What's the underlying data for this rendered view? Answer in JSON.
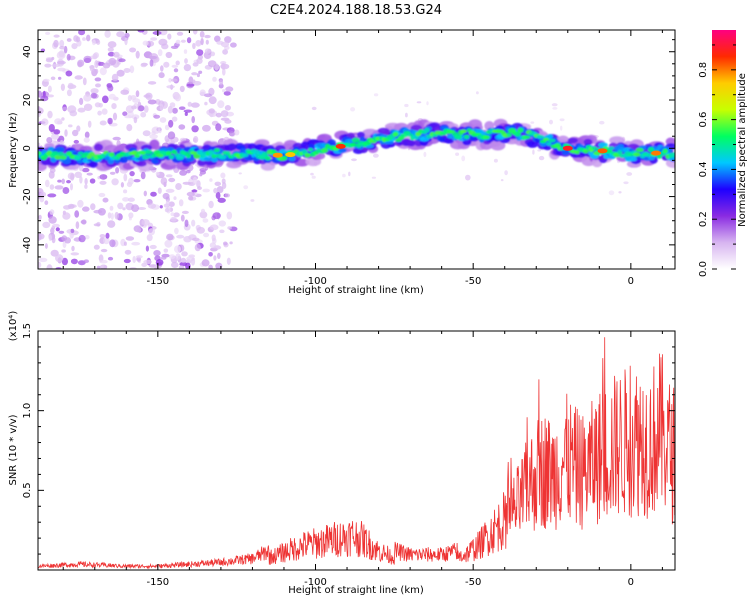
{
  "title": "C2E4.2024.188.18.53.G24",
  "chart_data": [
    {
      "type": "heatmap",
      "xlabel": "Height of straight line (km)",
      "ylabel": "Frequency (Hz)",
      "xlim": [
        -188,
        14
      ],
      "ylim": [
        -50,
        49
      ],
      "xticks": [
        -150,
        -100,
        -50,
        0
      ],
      "yticks": [
        -40,
        -20,
        0,
        20,
        40
      ],
      "ridge_center": [
        {
          "x": -188,
          "y": -3
        },
        {
          "x": -150,
          "y": -3
        },
        {
          "x": -125,
          "y": -2
        },
        {
          "x": -110,
          "y": -3
        },
        {
          "x": -95,
          "y": 0
        },
        {
          "x": -80,
          "y": 4
        },
        {
          "x": -65,
          "y": 6
        },
        {
          "x": -50,
          "y": 6
        },
        {
          "x": -35,
          "y": 6
        },
        {
          "x": -28,
          "y": 4
        },
        {
          "x": -20,
          "y": 0
        },
        {
          "x": 0,
          "y": -2
        },
        {
          "x": 14,
          "y": -2
        }
      ],
      "noise_region": [
        -188,
        -126
      ],
      "colorbar": {
        "label": "Normalized spectral amplitude",
        "ticks": [
          "0.0",
          "0.2",
          "0.4",
          "0.6",
          "0.8"
        ],
        "range": [
          0,
          0.96
        ],
        "colormap": [
          "#ffffff",
          "#d7b4f0",
          "#8a2be2",
          "#1e00ff",
          "#00c8ff",
          "#00ff60",
          "#c8ff00",
          "#ffcc00",
          "#ff2a00",
          "#ff0080"
        ]
      },
      "ridge_peaks": [
        {
          "x": -92,
          "amp": 0.85
        },
        {
          "x": -20,
          "amp": 0.88
        },
        {
          "x": -9,
          "amp": 0.82
        },
        {
          "x": 8,
          "amp": 0.8
        },
        {
          "x": -112,
          "amp": 0.78
        },
        {
          "x": -108,
          "amp": 0.75
        }
      ]
    },
    {
      "type": "line",
      "xlabel": "Height of straight line (km)",
      "ylabel": "SNR (10 * v/v)",
      "multiplier": "(x10⁴)",
      "xlim": [
        -188,
        14
      ],
      "ylim": [
        0,
        1.5
      ],
      "xticks": [
        -150,
        -100,
        -50,
        0
      ],
      "yticks": [
        "0.5",
        "1.0",
        "1.5"
      ],
      "series": [
        {
          "color": "#ee3333",
          "x": [
            -188,
            -175,
            -160,
            -150,
            -140,
            -130,
            -120,
            -112,
            -108,
            -103,
            -98,
            -93,
            -88,
            -85,
            -80,
            -75,
            -70,
            -65,
            -60,
            -55,
            -52,
            -48,
            -45,
            -42,
            -38,
            -35,
            -33,
            -31,
            -29,
            -27,
            -25,
            -22,
            -20,
            -18,
            -15,
            -12,
            -10,
            -7,
            -4,
            0,
            3,
            6,
            9,
            11,
            13,
            14
          ],
          "y": [
            0.02,
            0.03,
            0.02,
            0.02,
            0.03,
            0.04,
            0.06,
            0.12,
            0.16,
            0.2,
            0.22,
            0.25,
            0.27,
            0.24,
            0.15,
            0.1,
            0.08,
            0.08,
            0.08,
            0.1,
            0.13,
            0.2,
            0.28,
            0.35,
            0.45,
            0.55,
            0.65,
            0.72,
            0.78,
            0.8,
            0.75,
            0.85,
            0.88,
            0.82,
            0.78,
            0.85,
            0.9,
            0.95,
            1.0,
            1.02,
            1.05,
            1.0,
            1.1,
            1.05,
            0.9,
            0.95
          ]
        }
      ]
    }
  ]
}
